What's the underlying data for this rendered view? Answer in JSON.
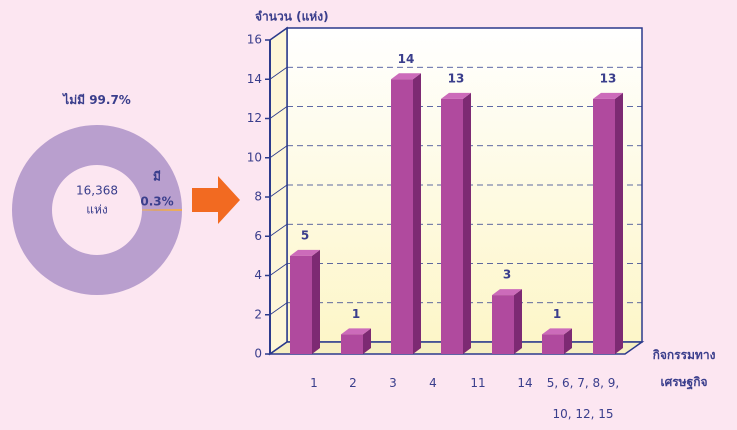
{
  "chart_data": [
    {
      "type": "donut",
      "categories": [
        "ไม่มี",
        "มี"
      ],
      "values": [
        99.7,
        0.3
      ],
      "value_labels": [
        "99.7%",
        "0.3%"
      ],
      "colors": [
        "#b99fce",
        "#f5a623"
      ],
      "center_label": "16,368",
      "center_sublabel": "แห่ง"
    },
    {
      "type": "bar",
      "y_label": "จำนวน (แห่ง)",
      "x_label": "กิจกรรมทาง เศรษฐกิจ",
      "categories": [
        "1",
        "2",
        "3",
        "4",
        "11",
        "14",
        "5, 6, 7, 8, 9, 10, 12, 15"
      ],
      "values": [
        5,
        1,
        14,
        13,
        3,
        1,
        13
      ],
      "color": "#b04a9e",
      "ylim": [
        0,
        16
      ],
      "yticks": [
        0,
        2,
        4,
        6,
        8,
        10,
        12,
        14,
        16
      ],
      "grid": true
    }
  ]
}
